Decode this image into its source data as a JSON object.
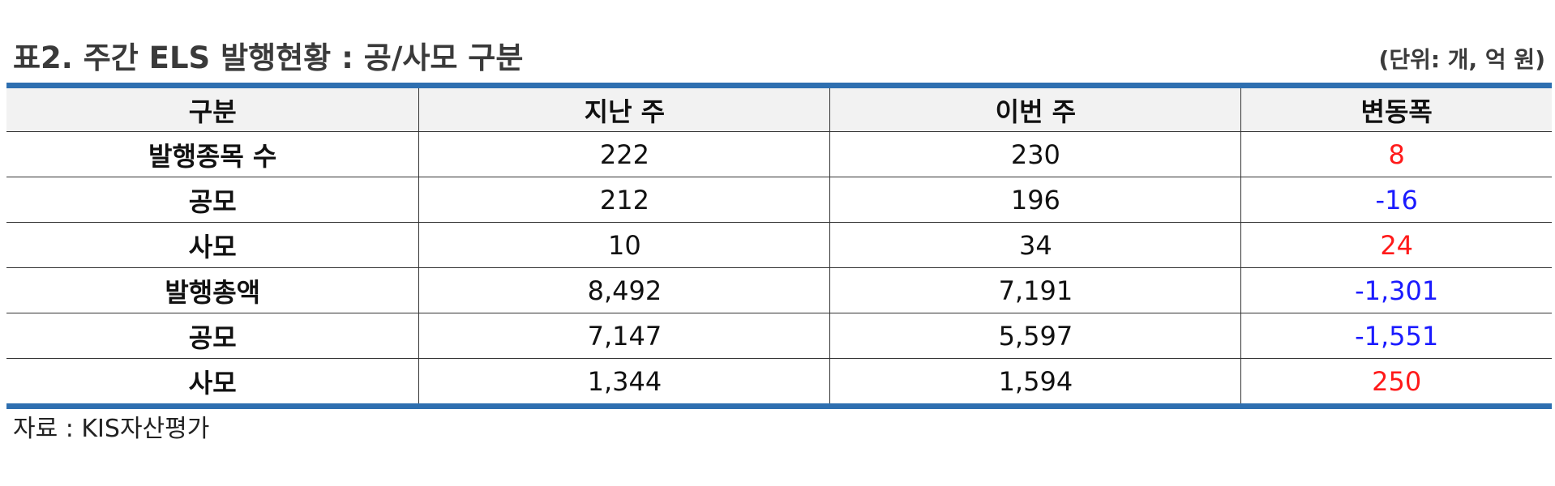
{
  "title": "표2. 주간 ELS 발행현황 : 공/사모 구분",
  "unit": "(단위: 개, 억 원)",
  "table": {
    "headers": [
      "구분",
      "지난 주",
      "이번 주",
      "변동폭"
    ],
    "rows": [
      {
        "label": "발행종목 수",
        "last_week": "222",
        "this_week": "230",
        "change": "8"
      },
      {
        "label": "공모",
        "last_week": "212",
        "this_week": "196",
        "change": "-16"
      },
      {
        "label": "사모",
        "last_week": "10",
        "this_week": "34",
        "change": "24"
      },
      {
        "label": "발행총액",
        "last_week": "8,492",
        "this_week": "7,191",
        "change": "-1,301"
      },
      {
        "label": "공모",
        "last_week": "7,147",
        "this_week": "5,597",
        "change": "-1,551"
      },
      {
        "label": "사모",
        "last_week": "1,344",
        "this_week": "1,594",
        "change": "250"
      }
    ]
  },
  "source": "자료 : KIS자산평가",
  "colors": {
    "rule": "#2e6fb0",
    "header_bg": "#f2f2f2",
    "increase": "#ff1a1a",
    "decrease": "#1a1aff"
  }
}
